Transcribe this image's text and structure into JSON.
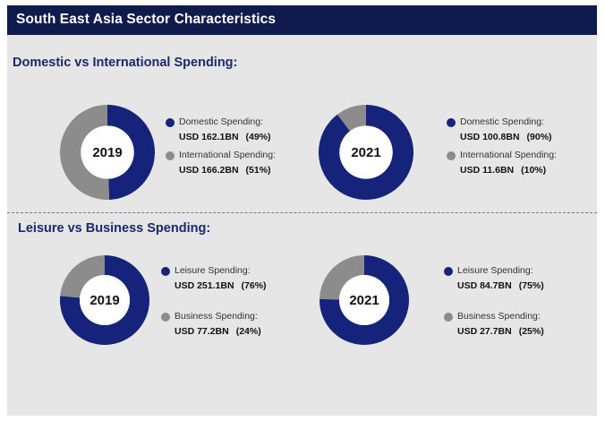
{
  "header": {
    "title": "South East Asia Sector Characteristics"
  },
  "colors": {
    "primary": "#16237a",
    "secondary": "#8c8c8c",
    "header_bg": "#0f1b4d"
  },
  "chart_data": [
    {
      "type": "pie",
      "section_title": "Domestic vs International Spending:",
      "title": "2019",
      "categories": [
        "Domestic Spending:",
        "International Spending:"
      ],
      "values": [
        162.1,
        166.2
      ],
      "value_labels": [
        "USD 162.1BN",
        "USD 166.2BN"
      ],
      "percent_labels": [
        "(49%)",
        "(51%)"
      ]
    },
    {
      "type": "pie",
      "title": "2021",
      "categories": [
        "Domestic Spending:",
        "International Spending:"
      ],
      "values": [
        100.8,
        11.6
      ],
      "value_labels": [
        "USD 100.8BN",
        "USD 11.6BN"
      ],
      "percent_labels": [
        "(90%)",
        "(10%)"
      ]
    },
    {
      "type": "pie",
      "section_title": "Leisure vs Business Spending:",
      "title": "2019",
      "categories": [
        "Leisure Spending:",
        "Business Spending:"
      ],
      "values": [
        251.1,
        77.2
      ],
      "value_labels": [
        "USD 251.1BN",
        "USD 77.2BN"
      ],
      "percent_labels": [
        "(76%)",
        "(24%)"
      ]
    },
    {
      "type": "pie",
      "title": "2021",
      "categories": [
        "Leisure Spending:",
        "Business Spending:"
      ],
      "values": [
        84.7,
        27.7
      ],
      "value_labels": [
        "USD 84.7BN",
        "USD 27.7BN"
      ],
      "percent_labels": [
        "(75%)",
        "(25%)"
      ]
    }
  ]
}
